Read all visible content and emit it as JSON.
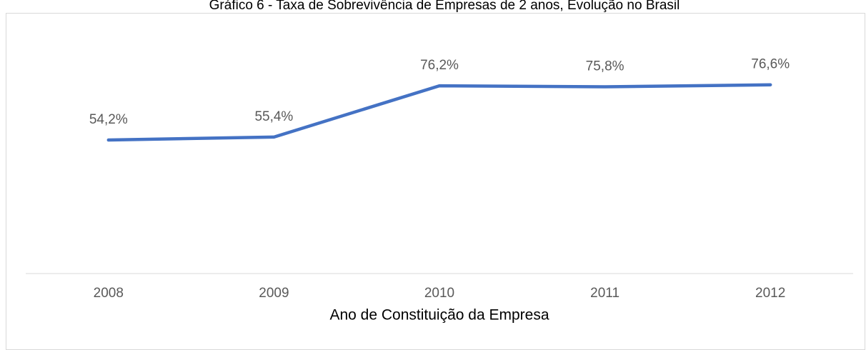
{
  "chart_data": {
    "type": "line",
    "title": "Gráfico 6 - Taxa de Sobrevivência de Empresas de 2 anos, Evolução no Brasil",
    "x_label": "Ano de Constituição da Empresa",
    "categories": [
      "2008",
      "2009",
      "2010",
      "2011",
      "2012"
    ],
    "values": [
      54.2,
      55.4,
      76.2,
      75.8,
      76.6
    ],
    "value_labels": [
      "54,2%",
      "55,4%",
      "76,2%",
      "75,8%",
      "76,6%"
    ],
    "color": "#4472c4",
    "ylim": [
      0,
      100
    ]
  }
}
